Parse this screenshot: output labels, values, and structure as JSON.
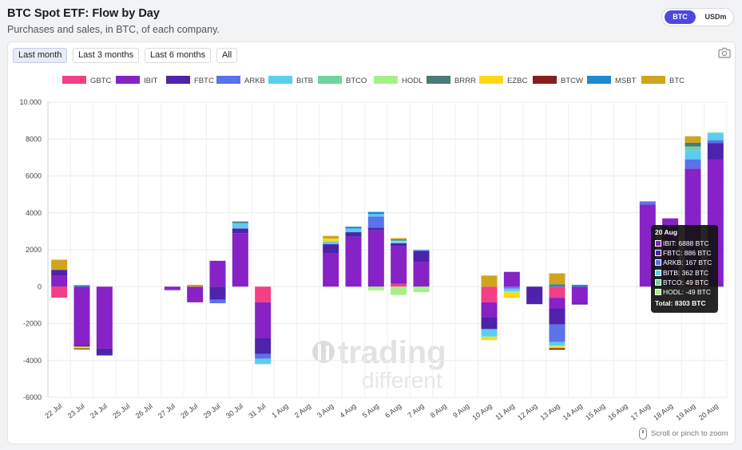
{
  "header": {
    "title": "BTC Spot ETF: Flow by Day",
    "subtitle": "Purchases and sales, in BTC, of each company."
  },
  "unit_toggle": {
    "options": [
      "BTC",
      "USDm"
    ],
    "selected": "BTC"
  },
  "range_buttons": [
    "Last month",
    "Last 3 months",
    "Last 6 months",
    "All"
  ],
  "range_selected": "Last month",
  "icons": {
    "screenshot": "camera-icon",
    "zoom_hint": "mouse-icon"
  },
  "zoom_hint": "Scroll or pinch to zoom",
  "watermark": {
    "line1": "trading",
    "line2": "different"
  },
  "colors": {
    "GBTC": "#f43f86",
    "IBIT": "#8622c6",
    "FBTC": "#4e22aa",
    "ARKB": "#5a72ea",
    "BITB": "#5ccdf0",
    "BTCO": "#6fd2a0",
    "HODL": "#a6f088",
    "BRRR": "#4a7a78",
    "EZBC": "#fcd915",
    "BTCW": "#8a1c1c",
    "MSBT": "#1f8ad0",
    "BTC": "#cfa41e",
    "accent": "#4f46e5"
  },
  "chart_data": {
    "type": "bar",
    "stacked": true,
    "x": [
      "22 Jul",
      "23 Jul",
      "24 Jul",
      "25 Jul",
      "26 Jul",
      "27 Jul",
      "28 Jul",
      "29 Jul",
      "30 Jul",
      "31 Jul",
      "1 Aug",
      "2 Aug",
      "3 Aug",
      "4 Aug",
      "5 Aug",
      "6 Aug",
      "7 Aug",
      "8 Aug",
      "9 Aug",
      "10 Aug",
      "11 Aug",
      "12 Aug",
      "13 Aug",
      "14 Aug",
      "15 Aug",
      "16 Aug",
      "17 Aug",
      "18 Aug",
      "19 Aug",
      "20 Aug"
    ],
    "ylim": [
      -6000,
      10000
    ],
    "yticks": [
      -6000,
      -4000,
      -2000,
      0,
      2000,
      4000,
      6000,
      8000,
      10000
    ],
    "ytick_labels": [
      "-6000",
      "-4000",
      "-2000",
      "0",
      "2000",
      "4000",
      "6000",
      "8000",
      "10.000"
    ],
    "grid": true,
    "legend_position": "top",
    "series": [
      {
        "name": "GBTC",
        "values": [
          -600,
          0,
          0,
          0,
          0,
          0,
          0,
          0,
          0,
          -850,
          0,
          0,
          0,
          0,
          0,
          150,
          0,
          0,
          0,
          -850,
          0,
          0,
          -600,
          0,
          0,
          0,
          0,
          0,
          350,
          0
        ]
      },
      {
        "name": "IBIT",
        "values": [
          580,
          -3150,
          -3350,
          0,
          0,
          -150,
          -850,
          1400,
          2900,
          -1950,
          0,
          0,
          1800,
          2700,
          3050,
          2050,
          1350,
          0,
          0,
          -800,
          800,
          0,
          -600,
          -900,
          0,
          0,
          4450,
          3700,
          6050,
          6888
        ]
      },
      {
        "name": "FBTC",
        "values": [
          330,
          -100,
          -380,
          0,
          0,
          -40,
          0,
          -700,
          250,
          -850,
          0,
          0,
          500,
          250,
          150,
          150,
          600,
          0,
          0,
          -650,
          0,
          -950,
          -850,
          -70,
          0,
          0,
          0,
          0,
          0,
          886
        ]
      },
      {
        "name": "ARKB",
        "values": [
          0,
          0,
          0,
          0,
          0,
          0,
          0,
          -200,
          0,
          -250,
          0,
          0,
          0,
          0,
          600,
          0,
          0,
          0,
          0,
          0,
          -110,
          0,
          -950,
          0,
          0,
          0,
          170,
          0,
          500,
          167
        ]
      },
      {
        "name": "BITB",
        "values": [
          0,
          0,
          0,
          0,
          0,
          0,
          0,
          0,
          300,
          -300,
          0,
          0,
          150,
          200,
          130,
          80,
          60,
          0,
          0,
          -400,
          -150,
          0,
          -200,
          0,
          0,
          0,
          0,
          0,
          500,
          362
        ]
      },
      {
        "name": "BTCO",
        "values": [
          0,
          0,
          0,
          0,
          0,
          0,
          0,
          0,
          0,
          0,
          0,
          0,
          0,
          0,
          0,
          0,
          0,
          0,
          0,
          0,
          0,
          0,
          0,
          0,
          0,
          0,
          0,
          0,
          200,
          49
        ]
      },
      {
        "name": "HODL",
        "values": [
          0,
          0,
          0,
          0,
          0,
          0,
          0,
          0,
          0,
          0,
          0,
          0,
          0,
          0,
          -200,
          -450,
          -300,
          0,
          0,
          -80,
          -50,
          0,
          -50,
          0,
          0,
          0,
          0,
          -250,
          0,
          -49
        ]
      },
      {
        "name": "BRRR",
        "values": [
          0,
          0,
          0,
          0,
          0,
          0,
          0,
          0,
          80,
          0,
          0,
          0,
          0,
          0,
          0,
          0,
          0,
          0,
          0,
          0,
          0,
          0,
          0,
          0,
          0,
          0,
          0,
          0,
          200,
          0
        ]
      },
      {
        "name": "EZBC",
        "values": [
          0,
          -100,
          0,
          0,
          0,
          0,
          0,
          0,
          0,
          0,
          0,
          0,
          150,
          0,
          0,
          60,
          0,
          0,
          0,
          -120,
          -300,
          0,
          -90,
          0,
          0,
          0,
          0,
          0,
          0,
          0
        ]
      },
      {
        "name": "BTCW",
        "values": [
          0,
          -50,
          0,
          0,
          0,
          0,
          0,
          0,
          0,
          0,
          0,
          0,
          0,
          0,
          0,
          0,
          0,
          0,
          0,
          0,
          0,
          0,
          -80,
          0,
          0,
          0,
          0,
          0,
          0,
          0
        ]
      },
      {
        "name": "MSBT",
        "values": [
          0,
          80,
          0,
          0,
          0,
          0,
          0,
          0,
          0,
          0,
          0,
          0,
          0,
          100,
          120,
          80,
          0,
          0,
          0,
          0,
          0,
          0,
          120,
          100,
          0,
          0,
          0,
          0,
          0,
          0
        ]
      },
      {
        "name": "BTC",
        "values": [
          550,
          0,
          0,
          0,
          0,
          0,
          100,
          0,
          0,
          0,
          0,
          0,
          150,
          0,
          0,
          60,
          0,
          0,
          0,
          600,
          0,
          0,
          600,
          0,
          0,
          0,
          0,
          0,
          350,
          0
        ]
      }
    ],
    "tooltip": {
      "date": "20 Aug",
      "rows": [
        {
          "series": "IBIT",
          "text": "IBIT: 6888 BTC"
        },
        {
          "series": "FBTC",
          "text": "FBTC: 886 BTC"
        },
        {
          "series": "ARKB",
          "text": "ARKB: 167 BTC"
        },
        {
          "series": "BITB",
          "text": "BITB: 362 BTC"
        },
        {
          "series": "BTCO",
          "text": "BTCO: 49 BTC"
        },
        {
          "series": "HODL",
          "text": "HODL: -49 BTC"
        }
      ],
      "total": "Total: 8303 BTC"
    }
  }
}
